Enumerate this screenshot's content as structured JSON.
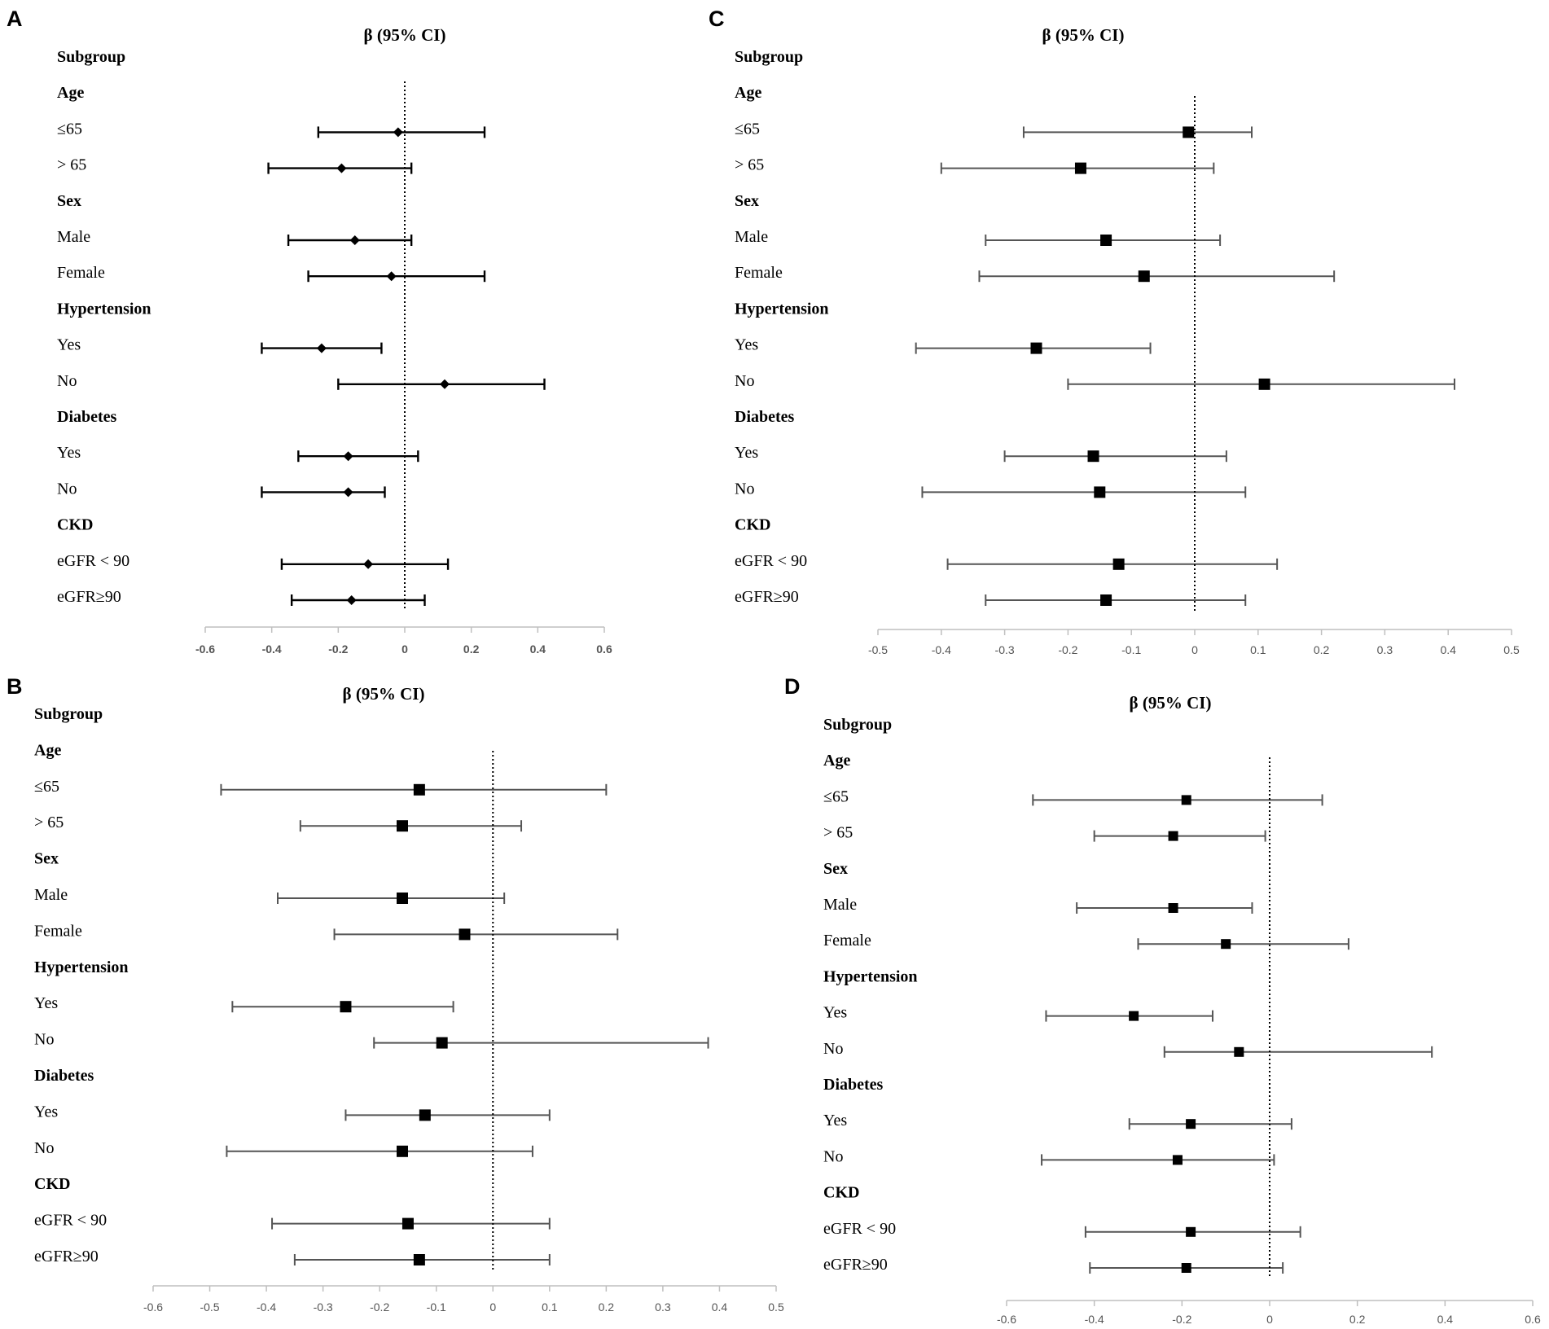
{
  "chart_data": [
    {
      "panel": "A",
      "type": "forest",
      "title": "β (95% CI)",
      "xlim": [
        -0.6,
        0.6
      ],
      "xticks": [
        -0.6,
        -0.4,
        -0.2,
        0,
        0.2,
        0.4,
        0.6
      ],
      "xtick_labels": [
        "-0.6",
        "-0.4",
        "-0.2",
        "0",
        "0.2",
        "0.4",
        "0.6"
      ],
      "marker": "diamond",
      "rows": [
        {
          "label": "Subgroup",
          "header": true
        },
        {
          "label": "Age",
          "header": true
        },
        {
          "label": "≤65",
          "est": -0.02,
          "lo": -0.26,
          "hi": 0.24
        },
        {
          "label": "> 65",
          "est": -0.19,
          "lo": -0.41,
          "hi": 0.02
        },
        {
          "label": "Sex",
          "header": true
        },
        {
          "label": "Male",
          "est": -0.15,
          "lo": -0.35,
          "hi": 0.02
        },
        {
          "label": "Female",
          "est": -0.04,
          "lo": -0.29,
          "hi": 0.24
        },
        {
          "label": "Hypertension",
          "header": true
        },
        {
          "label": "Yes",
          "est": -0.25,
          "lo": -0.43,
          "hi": -0.07
        },
        {
          "label": "No",
          "est": 0.12,
          "lo": -0.2,
          "hi": 0.42
        },
        {
          "label": "Diabetes",
          "header": true
        },
        {
          "label": "Yes",
          "est": -0.17,
          "lo": -0.32,
          "hi": 0.04
        },
        {
          "label": "No",
          "est": -0.17,
          "lo": -0.43,
          "hi": -0.06
        },
        {
          "label": "CKD",
          "header": true
        },
        {
          "label": "eGFR < 90",
          "est": -0.11,
          "lo": -0.37,
          "hi": 0.13
        },
        {
          "label": "eGFR≥90",
          "est": -0.16,
          "lo": -0.34,
          "hi": 0.06
        }
      ]
    },
    {
      "panel": "B",
      "type": "forest",
      "title": "β (95% CI)",
      "xlim": [
        -0.6,
        0.5
      ],
      "xticks": [
        -0.6,
        -0.5,
        -0.4,
        -0.3,
        -0.2,
        -0.1,
        0,
        0.1,
        0.2,
        0.3,
        0.4,
        0.5
      ],
      "xtick_labels": [
        "-0.6",
        "-0.5",
        "-0.4",
        "-0.3",
        "-0.2",
        "-0.1",
        "0",
        "0.1",
        "0.2",
        "0.3",
        "0.4",
        "0.5"
      ],
      "marker": "square",
      "rows": [
        {
          "label": "Subgroup",
          "header": true
        },
        {
          "label": "Age",
          "header": true
        },
        {
          "label": "≤65",
          "est": -0.13,
          "lo": -0.48,
          "hi": 0.2
        },
        {
          "label": "> 65",
          "est": -0.16,
          "lo": -0.34,
          "hi": 0.05
        },
        {
          "label": "Sex",
          "header": true
        },
        {
          "label": "Male",
          "est": -0.16,
          "lo": -0.38,
          "hi": 0.02
        },
        {
          "label": "Female",
          "est": -0.05,
          "lo": -0.28,
          "hi": 0.22
        },
        {
          "label": "Hypertension",
          "header": true
        },
        {
          "label": "Yes",
          "est": -0.26,
          "lo": -0.46,
          "hi": -0.07
        },
        {
          "label": "No",
          "est": -0.09,
          "lo": -0.21,
          "hi": 0.38
        },
        {
          "label": "Diabetes",
          "header": true
        },
        {
          "label": "Yes",
          "est": -0.12,
          "lo": -0.26,
          "hi": 0.1
        },
        {
          "label": "No",
          "est": -0.16,
          "lo": -0.47,
          "hi": 0.07
        },
        {
          "label": "CKD",
          "header": true
        },
        {
          "label": "eGFR < 90",
          "est": -0.15,
          "lo": -0.39,
          "hi": 0.1
        },
        {
          "label": "eGFR≥90",
          "est": -0.13,
          "lo": -0.35,
          "hi": 0.1
        }
      ]
    },
    {
      "panel": "C",
      "type": "forest",
      "title": "β (95% CI)",
      "xlim": [
        -0.5,
        0.5
      ],
      "xticks": [
        -0.5,
        -0.4,
        -0.3,
        -0.2,
        -0.1,
        0,
        0.1,
        0.2,
        0.3,
        0.4,
        0.5
      ],
      "xtick_labels": [
        "-0.5",
        "-0.4",
        "-0.3",
        "-0.2",
        "-0.1",
        "0",
        "0.1",
        "0.2",
        "0.3",
        "0.4",
        "0.5"
      ],
      "marker": "square",
      "rows": [
        {
          "label": "Subgroup",
          "header": true
        },
        {
          "label": "Age",
          "header": true
        },
        {
          "label": "≤65",
          "est": -0.01,
          "lo": -0.27,
          "hi": 0.09
        },
        {
          "label": "> 65",
          "est": -0.18,
          "lo": -0.4,
          "hi": 0.03
        },
        {
          "label": "Sex",
          "header": true
        },
        {
          "label": "Male",
          "est": -0.14,
          "lo": -0.33,
          "hi": 0.04
        },
        {
          "label": "Female",
          "est": -0.08,
          "lo": -0.34,
          "hi": 0.22
        },
        {
          "label": "Hypertension",
          "header": true
        },
        {
          "label": "Yes",
          "est": -0.25,
          "lo": -0.44,
          "hi": -0.07
        },
        {
          "label": "No",
          "est": 0.11,
          "lo": -0.2,
          "hi": 0.41
        },
        {
          "label": "Diabetes",
          "header": true
        },
        {
          "label": "Yes",
          "est": -0.16,
          "lo": -0.3,
          "hi": 0.05
        },
        {
          "label": "No",
          "est": -0.15,
          "lo": -0.43,
          "hi": 0.08
        },
        {
          "label": "CKD",
          "header": true
        },
        {
          "label": "eGFR < 90",
          "est": -0.12,
          "lo": -0.39,
          "hi": 0.13
        },
        {
          "label": "eGFR≥90",
          "est": -0.14,
          "lo": -0.33,
          "hi": 0.08
        }
      ]
    },
    {
      "panel": "D",
      "type": "forest",
      "title": "β (95% CI)",
      "xlim": [
        -0.6,
        0.6
      ],
      "xticks": [
        -0.6,
        -0.4,
        -0.2,
        0,
        0.2,
        0.4,
        0.6
      ],
      "xtick_labels": [
        "-0.6",
        "-0.4",
        "-0.2",
        "0",
        "0.2",
        "0.4",
        "0.6"
      ],
      "marker": "square",
      "rows": [
        {
          "label": "Subgroup",
          "header": true
        },
        {
          "label": "Age",
          "header": true
        },
        {
          "label": "≤65",
          "est": -0.19,
          "lo": -0.54,
          "hi": 0.12
        },
        {
          "label": "> 65",
          "est": -0.22,
          "lo": -0.4,
          "hi": -0.01
        },
        {
          "label": "Sex",
          "header": true
        },
        {
          "label": "Male",
          "est": -0.22,
          "lo": -0.44,
          "hi": -0.04
        },
        {
          "label": "Female",
          "est": -0.1,
          "lo": -0.3,
          "hi": 0.18
        },
        {
          "label": "Hypertension",
          "header": true
        },
        {
          "label": "Yes",
          "est": -0.31,
          "lo": -0.51,
          "hi": -0.13
        },
        {
          "label": "No",
          "est": -0.07,
          "lo": -0.24,
          "hi": 0.37
        },
        {
          "label": "Diabetes",
          "header": true
        },
        {
          "label": "Yes",
          "est": -0.18,
          "lo": -0.32,
          "hi": 0.05
        },
        {
          "label": "No",
          "est": -0.21,
          "lo": -0.52,
          "hi": 0.01
        },
        {
          "label": "CKD",
          "header": true
        },
        {
          "label": "eGFR < 90",
          "est": -0.18,
          "lo": -0.42,
          "hi": 0.07
        },
        {
          "label": "eGFR≥90",
          "est": -0.19,
          "lo": -0.41,
          "hi": 0.03
        }
      ]
    }
  ]
}
